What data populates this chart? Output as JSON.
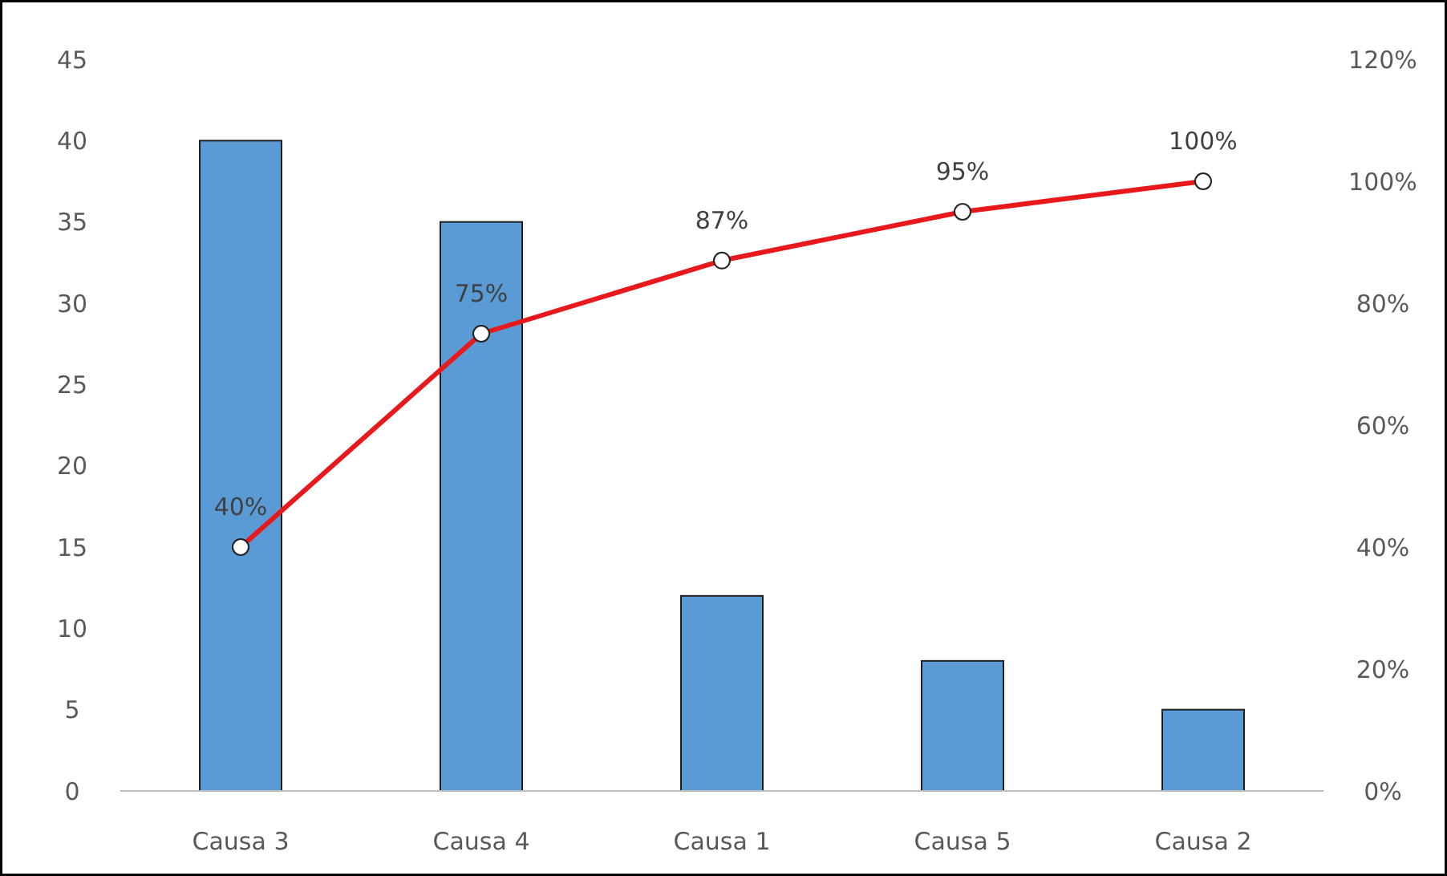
{
  "chart_data": {
    "type": "bar",
    "categories": [
      "Causa 3",
      "Causa 4",
      "Causa 1",
      "Causa 5",
      "Causa 2"
    ],
    "series": [
      {
        "color": "#5b9bd5",
        "values": [
          40,
          35,
          12,
          8,
          5
        ]
      },
      {
        "type": "line",
        "axis": "y2",
        "color": "#e8191c",
        "values": [
          40,
          75,
          87,
          95,
          100
        ],
        "value_labels": [
          "40%",
          "75%",
          "87%",
          "95%",
          "100%"
        ],
        "marker": "circle"
      }
    ],
    "ylim": [
      0,
      45
    ],
    "yticks": [
      0,
      5,
      10,
      15,
      20,
      25,
      30,
      35,
      40,
      45
    ],
    "y2lim": [
      0,
      120
    ],
    "y2ticks": [
      {
        "value": 0,
        "label": "0%"
      },
      {
        "value": 20,
        "label": "20%"
      },
      {
        "value": 40,
        "label": "40%"
      },
      {
        "value": 60,
        "label": "60%"
      },
      {
        "value": 80,
        "label": "80%"
      },
      {
        "value": 100,
        "label": "100%"
      },
      {
        "value": 120,
        "label": "120%"
      }
    ],
    "grid": false
  }
}
